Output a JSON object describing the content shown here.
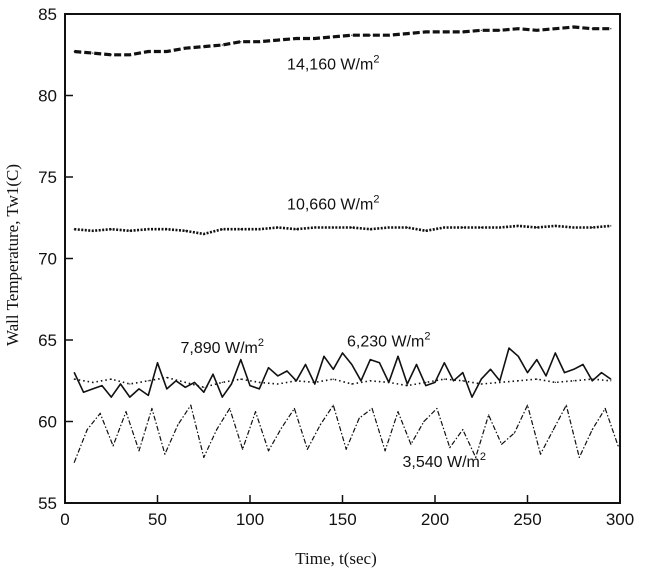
{
  "chart_data": {
    "type": "line",
    "title": "",
    "xlabel": "Time, t(sec)",
    "ylabel": "Wall Temperature, Tw1(C)",
    "xlim": [
      0,
      300
    ],
    "ylim": [
      55,
      85
    ],
    "x_ticks": [
      "0",
      "50",
      "100",
      "150",
      "200",
      "250",
      "300"
    ],
    "y_ticks": [
      "55",
      "60",
      "65",
      "70",
      "75",
      "80",
      "85"
    ],
    "grid": false,
    "legend": "none",
    "series": [
      {
        "name": "14,160 W/m²",
        "style": "dashed",
        "x": [
          5,
          15,
          25,
          35,
          45,
          55,
          65,
          75,
          85,
          95,
          105,
          115,
          125,
          135,
          145,
          155,
          165,
          175,
          185,
          195,
          205,
          215,
          225,
          235,
          245,
          255,
          265,
          275,
          285,
          295
        ],
        "y": [
          82.7,
          82.6,
          82.5,
          82.5,
          82.7,
          82.7,
          82.9,
          83.0,
          83.1,
          83.3,
          83.3,
          83.4,
          83.5,
          83.5,
          83.6,
          83.7,
          83.7,
          83.7,
          83.8,
          83.9,
          83.9,
          83.9,
          84.0,
          84.0,
          84.1,
          84.0,
          84.1,
          84.2,
          84.1,
          84.1
        ]
      },
      {
        "name": "10,660 W/m²",
        "style": "dotted-dense",
        "x": [
          5,
          15,
          25,
          35,
          45,
          55,
          65,
          75,
          85,
          95,
          105,
          115,
          125,
          135,
          145,
          155,
          165,
          175,
          185,
          195,
          205,
          215,
          225,
          235,
          245,
          255,
          265,
          275,
          285,
          295
        ],
        "y": [
          71.8,
          71.7,
          71.8,
          71.7,
          71.8,
          71.8,
          71.7,
          71.5,
          71.8,
          71.8,
          71.8,
          71.9,
          71.8,
          71.9,
          71.9,
          71.9,
          71.8,
          71.9,
          71.9,
          71.7,
          71.9,
          71.9,
          71.9,
          71.9,
          72.0,
          71.9,
          72.0,
          71.9,
          71.9,
          72.0
        ]
      },
      {
        "name": "7,890 W/m²",
        "style": "dotted",
        "x": [
          5,
          15,
          25,
          35,
          45,
          55,
          65,
          75,
          85,
          95,
          105,
          115,
          125,
          135,
          145,
          155,
          165,
          175,
          185,
          195,
          205,
          215,
          225,
          235,
          245,
          255,
          265,
          275,
          285,
          295
        ],
        "y": [
          62.6,
          62.4,
          62.6,
          62.3,
          62.5,
          62.7,
          62.4,
          62.1,
          62.4,
          62.6,
          62.4,
          62.3,
          62.5,
          62.4,
          62.6,
          62.3,
          62.5,
          62.4,
          62.2,
          62.4,
          62.6,
          62.5,
          62.3,
          62.4,
          62.5,
          62.6,
          62.4,
          62.5,
          62.6,
          62.5
        ]
      },
      {
        "name": "6,230 W/m²",
        "style": "solid",
        "x": [
          5,
          10,
          15,
          20,
          25,
          30,
          35,
          40,
          45,
          50,
          55,
          60,
          65,
          70,
          75,
          80,
          85,
          90,
          95,
          100,
          105,
          110,
          115,
          120,
          125,
          130,
          135,
          140,
          145,
          150,
          155,
          160,
          165,
          170,
          175,
          180,
          185,
          190,
          195,
          200,
          205,
          210,
          215,
          220,
          225,
          230,
          235,
          240,
          245,
          250,
          255,
          260,
          265,
          270,
          275,
          280,
          285,
          290,
          295
        ],
        "y": [
          63.0,
          61.8,
          62.0,
          62.2,
          61.5,
          62.3,
          61.5,
          62.0,
          61.6,
          63.6,
          62.0,
          62.5,
          62.1,
          62.4,
          61.8,
          62.9,
          61.5,
          62.3,
          63.8,
          62.2,
          62.0,
          63.3,
          62.8,
          63.1,
          62.5,
          63.5,
          62.3,
          64.0,
          63.2,
          64.2,
          63.5,
          62.5,
          63.8,
          63.6,
          62.4,
          64.0,
          62.3,
          63.5,
          62.2,
          62.4,
          63.6,
          62.5,
          63.0,
          61.5,
          62.6,
          63.2,
          62.5,
          64.5,
          64.0,
          63.0,
          63.8,
          62.8,
          64.2,
          63.0,
          63.2,
          63.5,
          62.5,
          63.0,
          62.6
        ]
      },
      {
        "name": "3,540 W/m²",
        "style": "dash-dot",
        "x": [
          5,
          12,
          19,
          26,
          33,
          40,
          47,
          54,
          61,
          68,
          75,
          82,
          89,
          96,
          103,
          110,
          117,
          124,
          131,
          138,
          145,
          152,
          159,
          166,
          173,
          180,
          187,
          194,
          201,
          208,
          215,
          222,
          229,
          236,
          243,
          250,
          257,
          264,
          271,
          278,
          285,
          292,
          299
        ],
        "y": [
          57.5,
          59.5,
          60.5,
          58.5,
          60.6,
          58.2,
          60.8,
          58.0,
          59.8,
          61.0,
          57.8,
          59.5,
          60.8,
          58.3,
          60.6,
          58.2,
          59.6,
          60.8,
          58.3,
          59.8,
          61.0,
          58.3,
          60.2,
          60.8,
          58.2,
          60.6,
          58.6,
          60.0,
          60.8,
          58.4,
          59.5,
          57.8,
          60.4,
          58.6,
          59.3,
          61.0,
          58.0,
          59.5,
          61.0,
          57.8,
          59.5,
          60.8,
          58.5
        ]
      }
    ],
    "annotations": [
      {
        "text": "14,160 W/m",
        "sup": "2",
        "x": 145,
        "y": 81.6,
        "anchor": "middle",
        "for": "14,160 W/m²"
      },
      {
        "text": "10,660 W/m",
        "sup": "2",
        "x": 145,
        "y": 73.0,
        "anchor": "middle",
        "for": "10,660 W/m²"
      },
      {
        "text": "7,890 W/m",
        "sup": "2",
        "x": 85,
        "y": 64.2,
        "anchor": "middle",
        "for": "7,890 W/m²"
      },
      {
        "text": "6,230 W/m",
        "sup": "2",
        "x": 175,
        "y": 64.6,
        "anchor": "middle",
        "for": "6,230 W/m²"
      },
      {
        "text": "3,540 W/m",
        "sup": "2",
        "x": 205,
        "y": 57.2,
        "anchor": "middle",
        "for": "3,540 W/m²"
      }
    ]
  }
}
